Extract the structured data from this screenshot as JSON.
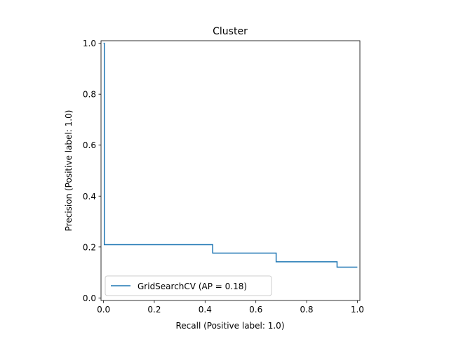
{
  "chart_data": {
    "type": "line",
    "drawstyle": "steps-post",
    "title": "Cluster",
    "xlabel": "Recall (Positive label: 1.0)",
    "ylabel": "Precision (Positive label: 1.0)",
    "xlim": [
      -0.01,
      1.01
    ],
    "ylim": [
      -0.01,
      1.01
    ],
    "xticks": [
      0.0,
      0.2,
      0.4,
      0.6,
      0.8,
      1.0
    ],
    "xtick_labels": [
      "0.0",
      "0.2",
      "0.4",
      "0.6",
      "0.8",
      "1.0"
    ],
    "yticks": [
      0.0,
      0.2,
      0.4,
      0.6,
      0.8,
      1.0
    ],
    "ytick_labels": [
      "0.0",
      "0.2",
      "0.4",
      "0.6",
      "0.8",
      "1.0"
    ],
    "grid": false,
    "legend_position": "lower-left",
    "series": [
      {
        "name": "GridSearchCV (AP = 0.18)",
        "color": "#1f77b4",
        "x": [
          0.0,
          0.0,
          0.003,
          0.43,
          0.68,
          0.92,
          1.0
        ],
        "y": [
          1.0,
          1.0,
          0.209,
          0.176,
          0.142,
          0.121,
          0.121
        ]
      }
    ]
  }
}
